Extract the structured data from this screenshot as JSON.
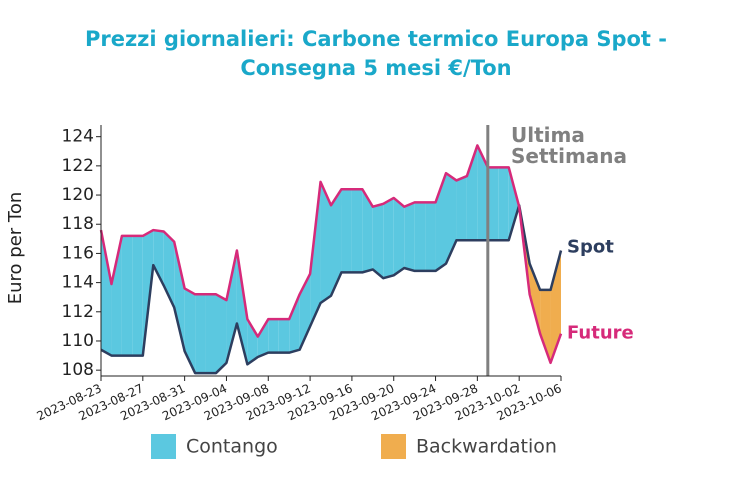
{
  "chart_data": {
    "type": "line",
    "title": "Prezzi giornalieri: Carbone termico Europa Spot - Consegna 5 mesi €/Ton",
    "y_label": "Euro per Ton",
    "x": [
      "2023-08-23",
      "2023-08-24",
      "2023-08-25",
      "2023-08-26",
      "2023-08-27",
      "2023-08-28",
      "2023-08-29",
      "2023-08-30",
      "2023-08-31",
      "2023-09-01",
      "2023-09-02",
      "2023-09-03",
      "2023-09-04",
      "2023-09-05",
      "2023-09-06",
      "2023-09-07",
      "2023-09-08",
      "2023-09-09",
      "2023-09-10",
      "2023-09-11",
      "2023-09-12",
      "2023-09-13",
      "2023-09-14",
      "2023-09-15",
      "2023-09-16",
      "2023-09-17",
      "2023-09-18",
      "2023-09-19",
      "2023-09-20",
      "2023-09-21",
      "2023-09-22",
      "2023-09-23",
      "2023-09-24",
      "2023-09-25",
      "2023-09-26",
      "2023-09-27",
      "2023-09-28",
      "2023-09-29",
      "2023-09-30",
      "2023-10-01",
      "2023-10-02",
      "2023-10-03",
      "2023-10-04",
      "2023-10-05",
      "2023-10-06"
    ],
    "series": [
      {
        "name": "Spot",
        "color": "#2d3e5f",
        "values": [
          109.4,
          109,
          109,
          109,
          109,
          115.2,
          113.8,
          112.3,
          109.3,
          107.8,
          107.8,
          107.8,
          108.5,
          111.2,
          108.4,
          108.9,
          109.2,
          109.2,
          109.2,
          109.4,
          111,
          112.6,
          113.1,
          114.7,
          114.7,
          114.7,
          114.9,
          114.3,
          114.5,
          115,
          114.8,
          114.8,
          114.8,
          115.3,
          116.9,
          116.9,
          116.9,
          116.9,
          116.9,
          116.9,
          119.3,
          115.3,
          113.5,
          113.5,
          116.2
        ]
      },
      {
        "name": "Future",
        "color": "#d62a7a",
        "values": [
          117.6,
          113.9,
          117.2,
          117.2,
          117.2,
          117.6,
          117.5,
          116.8,
          113.6,
          113.2,
          113.2,
          113.2,
          112.8,
          116.2,
          111.5,
          110.3,
          111.5,
          111.5,
          111.5,
          113.2,
          114.6,
          120.9,
          119.3,
          120.4,
          120.4,
          120.4,
          119.2,
          119.4,
          119.8,
          119.2,
          119.5,
          119.5,
          119.5,
          121.5,
          121,
          121.3,
          123.4,
          121.9,
          121.9,
          121.9,
          119.2,
          113.2,
          110.5,
          108.5,
          110.5
        ]
      }
    ],
    "fills": [
      {
        "name": "Contango",
        "color": "#5bc8e0"
      },
      {
        "name": "Backwardation",
        "color": "#f0ad4e"
      }
    ],
    "vline": {
      "x": "2023-09-29",
      "color": "#808080",
      "label": "Ultima Settimana"
    },
    "xlim": [
      "2023-08-23",
      "2023-10-06"
    ],
    "xticks": [
      "2023-08-23",
      "2023-08-27",
      "2023-08-31",
      "2023-09-04",
      "2023-09-08",
      "2023-09-12",
      "2023-09-16",
      "2023-09-20",
      "2023-09-24",
      "2023-09-28",
      "2023-10-02",
      "2023-10-06"
    ],
    "ylim": [
      107.6,
      124.8
    ],
    "yticks": [
      108,
      110,
      112,
      114,
      116,
      118,
      120,
      122,
      124
    ]
  }
}
